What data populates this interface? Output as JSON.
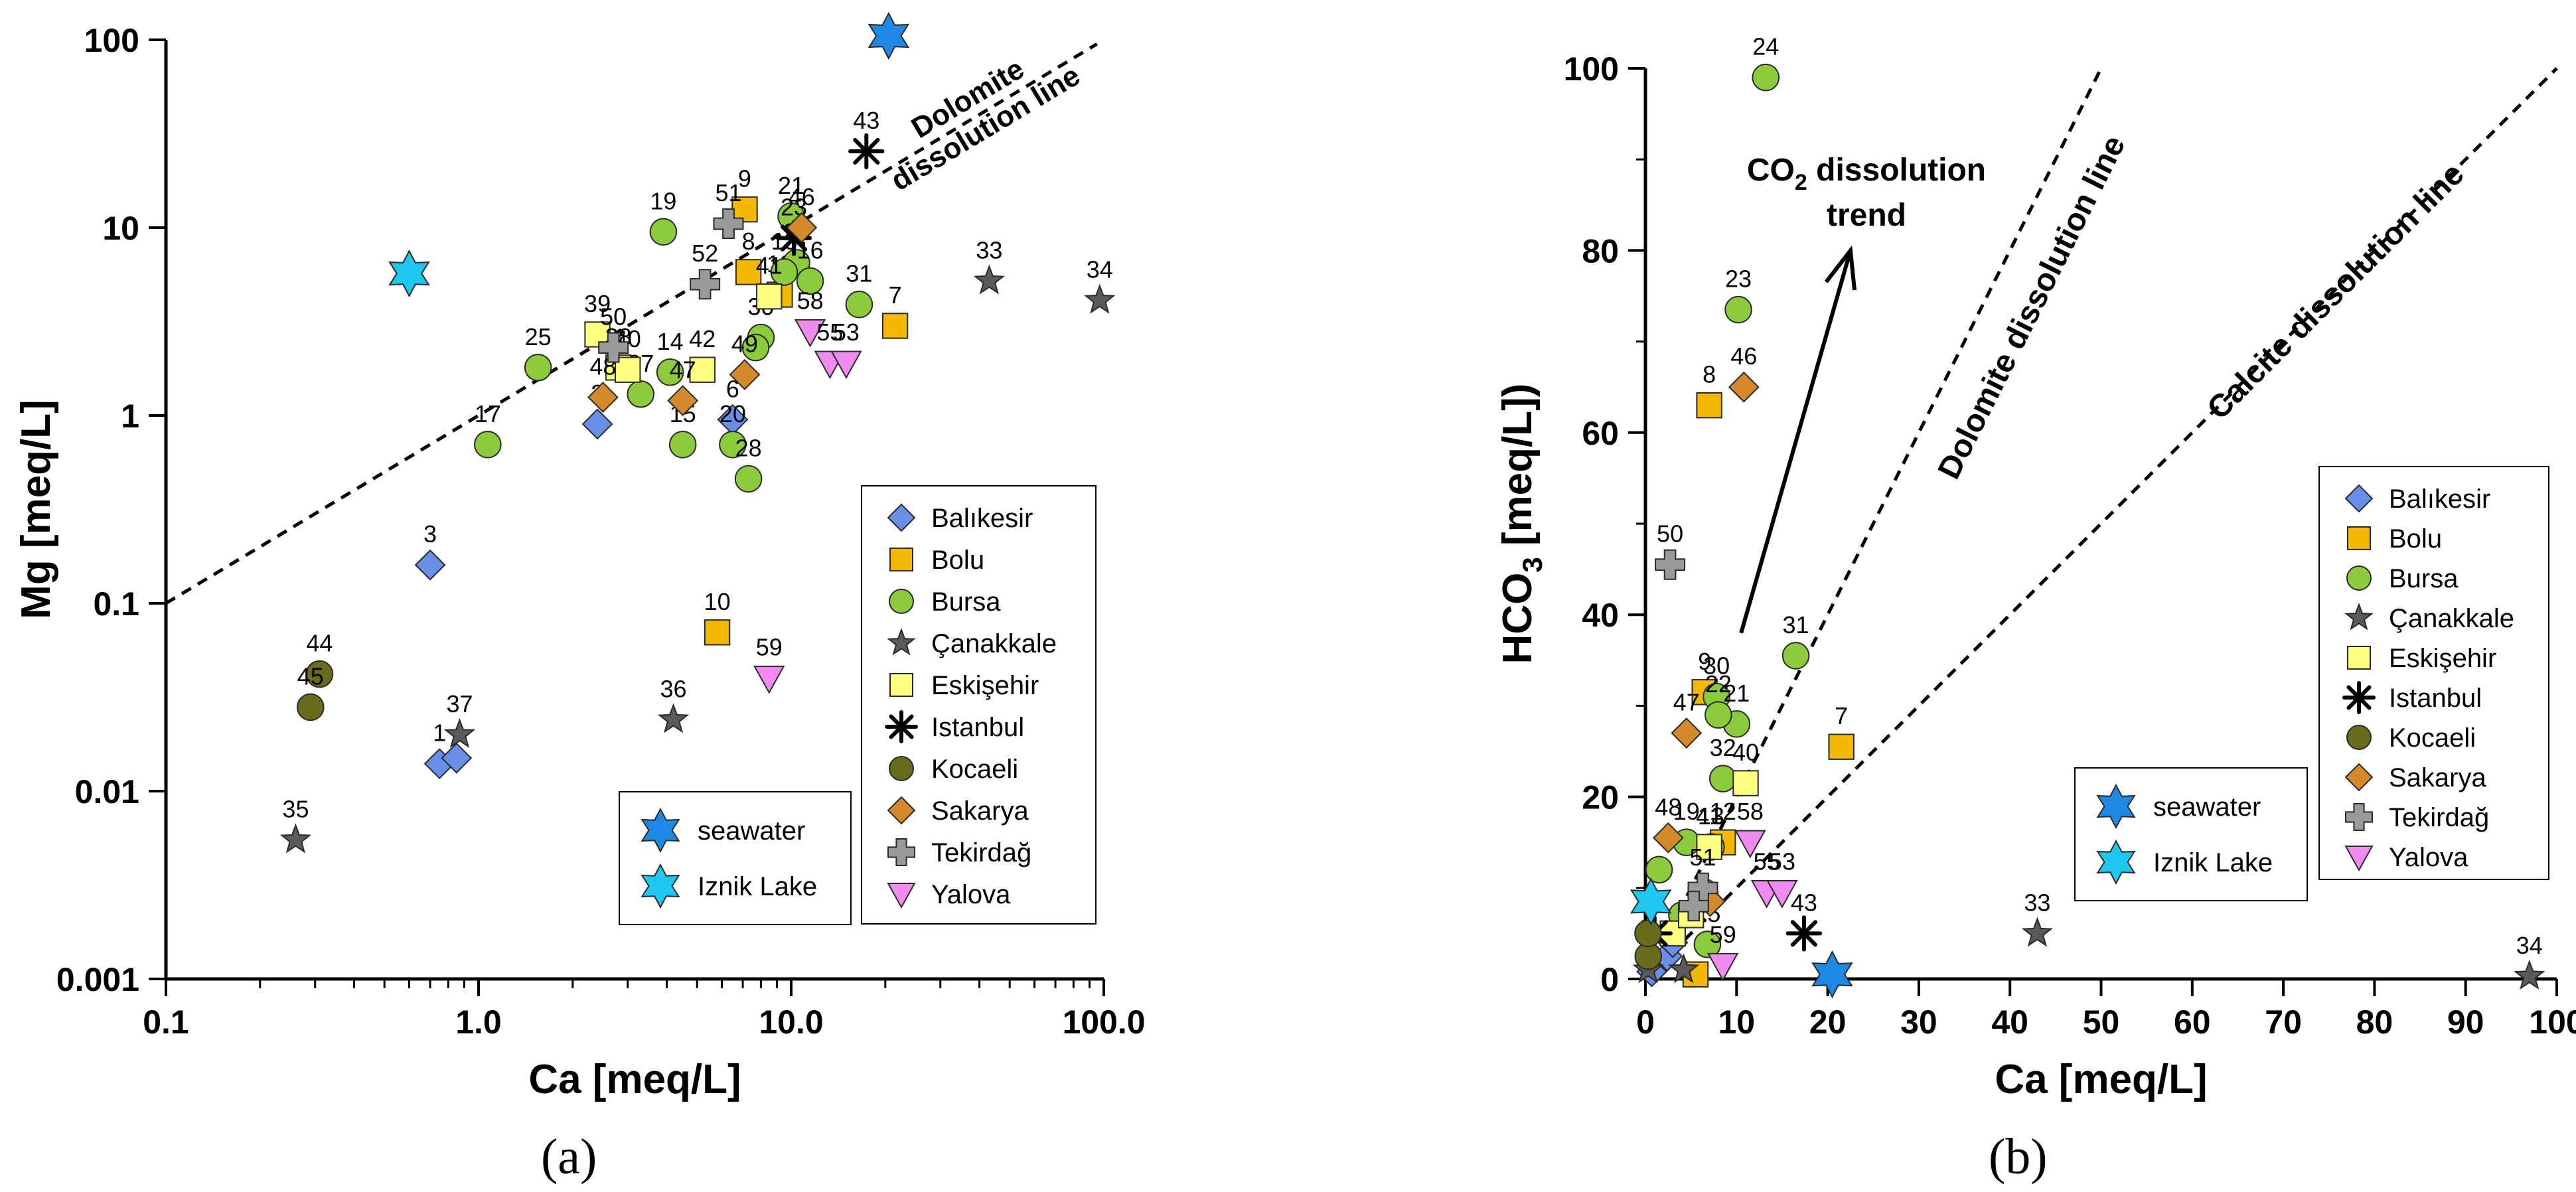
{
  "figure": {
    "panel_a_label": "(a)",
    "panel_b_label": "(b)"
  },
  "chart_data": [
    {
      "type": "scatter",
      "panel": "(a)",
      "xlabel": "Ca [meq/L]",
      "ylabel": "Mg [meq/L]",
      "xscale": "log",
      "yscale": "log",
      "xlim": [
        0.1,
        100
      ],
      "ylim": [
        0.001,
        100
      ],
      "xticks": [
        0.1,
        1,
        10,
        100
      ],
      "xtick_labels": [
        "0.1",
        "1.0",
        "10.0",
        "100.0"
      ],
      "yticks": [
        0.001,
        0.01,
        0.1,
        1,
        10,
        100
      ],
      "ytick_labels": [
        "0.001",
        "0.01",
        "0.1",
        "1",
        "10",
        "100"
      ],
      "grid": false,
      "legend_position": "bottom-right",
      "reference_lines": [
        {
          "name": "Dolomite dissolution line",
          "label_lines": [
            "Dolomite",
            "dissolution line"
          ],
          "from": [
            0.1,
            0.1
          ],
          "to": [
            95,
            95
          ],
          "style": "dashed"
        }
      ],
      "series": [
        {
          "name": "Balıkesir",
          "marker": "diamond",
          "color": "#6A8FE8",
          "points": [
            {
              "x": 0.7,
              "y": 0.16,
              "label": "3"
            },
            {
              "x": 2.4,
              "y": 0.9,
              "label": "2"
            },
            {
              "x": 0.75,
              "y": 0.014,
              "label": "1"
            },
            {
              "x": 0.85,
              "y": 0.015,
              "label": ""
            },
            {
              "x": 6.5,
              "y": 0.95,
              "label": "6"
            }
          ]
        },
        {
          "name": "Bolu",
          "marker": "square",
          "color": "#F5B800",
          "points": [
            {
              "x": 7.1,
              "y": 12.5,
              "label": "9"
            },
            {
              "x": 7.3,
              "y": 5.8,
              "label": "8"
            },
            {
              "x": 21.5,
              "y": 3.0,
              "label": "7"
            },
            {
              "x": 5.8,
              "y": 0.07,
              "label": "10"
            },
            {
              "x": 9.2,
              "y": 4.4,
              "label": "12"
            }
          ]
        },
        {
          "name": "Bursa",
          "marker": "circle",
          "color": "#8CCB3C",
          "points": [
            {
              "x": 3.9,
              "y": 9.5,
              "label": "19"
            },
            {
              "x": 10,
              "y": 11.5,
              "label": "21"
            },
            {
              "x": 10.4,
              "y": 6.5,
              "label": "24"
            },
            {
              "x": 1.55,
              "y": 1.8,
              "label": "25"
            },
            {
              "x": 1.07,
              "y": 0.7,
              "label": "17"
            },
            {
              "x": 4.5,
              "y": 0.7,
              "label": "15"
            },
            {
              "x": 6.5,
              "y": 0.7,
              "label": "20"
            },
            {
              "x": 7.3,
              "y": 0.46,
              "label": "28"
            },
            {
              "x": 16.5,
              "y": 3.9,
              "label": "31"
            },
            {
              "x": 8.0,
              "y": 2.6,
              "label": "30"
            },
            {
              "x": 3.3,
              "y": 1.3,
              "label": "27"
            },
            {
              "x": 4.1,
              "y": 1.7,
              "label": "14"
            },
            {
              "x": 7.7,
              "y": 2.3,
              "label": ""
            },
            {
              "x": 11.5,
              "y": 5.2,
              "label": "16"
            },
            {
              "x": 9.5,
              "y": 5.8,
              "label": "13"
            }
          ]
        },
        {
          "name": "Çanakkale",
          "marker": "star",
          "color": "#5A5A5A",
          "points": [
            {
              "x": 43,
              "y": 5.2,
              "label": "33"
            },
            {
              "x": 97,
              "y": 4.1,
              "label": "34"
            },
            {
              "x": 0.26,
              "y": 0.0055,
              "label": "35"
            },
            {
              "x": 4.2,
              "y": 0.024,
              "label": "36"
            },
            {
              "x": 0.87,
              "y": 0.02,
              "label": "37"
            }
          ]
        },
        {
          "name": "Eskişehir",
          "marker": "square",
          "color": "#FFFF80",
          "points": [
            {
              "x": 2.4,
              "y": 2.7,
              "label": "39"
            },
            {
              "x": 2.8,
              "y": 1.8,
              "label": "38"
            },
            {
              "x": 3.0,
              "y": 1.75,
              "label": "40"
            },
            {
              "x": 5.2,
              "y": 1.75,
              "label": "42"
            },
            {
              "x": 8.5,
              "y": 4.3,
              "label": "41"
            }
          ]
        },
        {
          "name": "Istanbul",
          "marker": "asterisk",
          "color": "#000000",
          "points": [
            {
              "x": 17.4,
              "y": 25.5,
              "label": "43"
            },
            {
              "x": 10.2,
              "y": 8.8,
              "label": "23"
            }
          ]
        },
        {
          "name": "Kocaeli",
          "marker": "circle",
          "color": "#6B6B1E",
          "points": [
            {
              "x": 0.31,
              "y": 0.042,
              "label": "44"
            },
            {
              "x": 0.29,
              "y": 0.028,
              "label": "45"
            }
          ]
        },
        {
          "name": "Sakarya",
          "marker": "diamond",
          "color": "#D4892B",
          "points": [
            {
              "x": 2.5,
              "y": 1.25,
              "label": "48"
            },
            {
              "x": 4.5,
              "y": 1.2,
              "label": "47"
            },
            {
              "x": 7.1,
              "y": 1.65,
              "label": "49"
            },
            {
              "x": 10.8,
              "y": 10.0,
              "label": "46"
            }
          ]
        },
        {
          "name": "Tekirdağ",
          "marker": "cross",
          "color": "#9A9A9A",
          "points": [
            {
              "x": 6.3,
              "y": 10.5,
              "label": "51"
            },
            {
              "x": 5.3,
              "y": 5.0,
              "label": "52"
            },
            {
              "x": 2.7,
              "y": 2.3,
              "label": "50"
            }
          ]
        },
        {
          "name": "Yalova",
          "marker": "triangle-down",
          "color": "#F08CF0",
          "points": [
            {
              "x": 11.5,
              "y": 2.8,
              "label": "58"
            },
            {
              "x": 13.3,
              "y": 1.9,
              "label": "55"
            },
            {
              "x": 15.0,
              "y": 1.9,
              "label": "53"
            },
            {
              "x": 8.5,
              "y": 0.04,
              "label": "59"
            }
          ]
        },
        {
          "name": "seawater",
          "marker": "star6",
          "color": "#1E88E5",
          "points": [
            {
              "x": 20.5,
              "y": 105,
              "label": ""
            }
          ]
        },
        {
          "name": "Iznik Lake",
          "marker": "star6",
          "color": "#1EC8F0",
          "points": [
            {
              "x": 0.6,
              "y": 5.7,
              "label": ""
            }
          ]
        }
      ]
    },
    {
      "type": "scatter",
      "panel": "(b)",
      "xlabel": "Ca [meq/L]",
      "ylabel": "HCO3 [meq/L]",
      "ylabel_parts": [
        "HCO",
        "3",
        " [meq/L])"
      ],
      "xscale": "linear",
      "yscale": "linear",
      "xlim": [
        0,
        100
      ],
      "ylim": [
        0,
        100
      ],
      "xticks": [
        0,
        10,
        20,
        30,
        40,
        50,
        60,
        70,
        80,
        90,
        100
      ],
      "yticks": [
        0,
        20,
        40,
        60,
        80,
        100
      ],
      "grid": false,
      "legend_position": "right",
      "annotations": [
        {
          "text_parts": [
            "CO",
            "2",
            " dissolution"
          ],
          "line2": "trend",
          "arrow_from": [
            10.5,
            38
          ],
          "arrow_to": [
            22.5,
            80
          ]
        }
      ],
      "reference_lines": [
        {
          "name": "Dolomite dissolution line",
          "from": [
            0,
            0
          ],
          "to": [
            50,
            100
          ],
          "style": "dashed"
        },
        {
          "name": "Calcite dissolution line",
          "from": [
            0,
            0
          ],
          "to": [
            100,
            100
          ],
          "style": "dashed"
        }
      ],
      "series": [
        {
          "name": "Balıkesir",
          "marker": "diamond",
          "color": "#6A8FE8",
          "points": [
            {
              "x": 0.7,
              "y": 0.8,
              "label": ""
            },
            {
              "x": 2.4,
              "y": 2.5,
              "label": ""
            },
            {
              "x": 3.0,
              "y": 4.0,
              "label": ""
            }
          ]
        },
        {
          "name": "Bolu",
          "marker": "square",
          "color": "#F5B800",
          "points": [
            {
              "x": 7.0,
              "y": 63,
              "label": "8"
            },
            {
              "x": 6.5,
              "y": 31.5,
              "label": "9"
            },
            {
              "x": 21.5,
              "y": 25.5,
              "label": "7"
            },
            {
              "x": 8.5,
              "y": 15.0,
              "label": "12"
            },
            {
              "x": 5.5,
              "y": 0.5,
              "label": ""
            }
          ]
        },
        {
          "name": "Bursa",
          "marker": "circle",
          "color": "#8CCB3C",
          "points": [
            {
              "x": 13.2,
              "y": 99,
              "label": "24"
            },
            {
              "x": 10.2,
              "y": 73.5,
              "label": "23"
            },
            {
              "x": 16.5,
              "y": 35.5,
              "label": "31"
            },
            {
              "x": 7.8,
              "y": 31.0,
              "label": "30"
            },
            {
              "x": 10.0,
              "y": 28.0,
              "label": "21"
            },
            {
              "x": 8.0,
              "y": 29.0,
              "label": "22"
            },
            {
              "x": 8.5,
              "y": 22.0,
              "label": "32"
            },
            {
              "x": 4.5,
              "y": 15.0,
              "label": "19"
            },
            {
              "x": 1.5,
              "y": 12.0,
              "label": ""
            },
            {
              "x": 7.2,
              "y": 14.5,
              "label": "13"
            },
            {
              "x": 6.5,
              "y": 9.5,
              "label": ""
            },
            {
              "x": 4.0,
              "y": 7.0,
              "label": ""
            },
            {
              "x": 6.8,
              "y": 3.8,
              "label": "25"
            }
          ]
        },
        {
          "name": "Çanakkale",
          "marker": "star",
          "color": "#5A5A5A",
          "points": [
            {
              "x": 43,
              "y": 5.0,
              "label": "33"
            },
            {
              "x": 97,
              "y": 0.3,
              "label": "34"
            },
            {
              "x": 0.3,
              "y": 1.0,
              "label": ""
            },
            {
              "x": 4.2,
              "y": 1.0,
              "label": ""
            }
          ]
        },
        {
          "name": "Eskişehir",
          "marker": "square",
          "color": "#FFFF80",
          "points": [
            {
              "x": 11.0,
              "y": 21.5,
              "label": "40"
            },
            {
              "x": 7.0,
              "y": 14.5,
              "label": "41"
            },
            {
              "x": 3.0,
              "y": 5.0,
              "label": ""
            },
            {
              "x": 5.0,
              "y": 7.0,
              "label": ""
            }
          ]
        },
        {
          "name": "Istanbul",
          "marker": "asterisk",
          "color": "#000000",
          "points": [
            {
              "x": 17.4,
              "y": 5.0,
              "label": "43"
            },
            {
              "x": 1.0,
              "y": 5.0,
              "label": ""
            }
          ]
        },
        {
          "name": "Kocaeli",
          "marker": "circle",
          "color": "#6B6B1E",
          "points": [
            {
              "x": 0.31,
              "y": 2.5,
              "label": ""
            },
            {
              "x": 0.29,
              "y": 5.0,
              "label": ""
            }
          ]
        },
        {
          "name": "Sakarya",
          "marker": "diamond",
          "color": "#D4892B",
          "points": [
            {
              "x": 10.8,
              "y": 65,
              "label": "46"
            },
            {
              "x": 4.5,
              "y": 27.0,
              "label": "47"
            },
            {
              "x": 2.5,
              "y": 15.5,
              "label": "48"
            },
            {
              "x": 7.1,
              "y": 8.5,
              "label": ""
            }
          ]
        },
        {
          "name": "Tekirdağ",
          "marker": "cross",
          "color": "#9A9A9A",
          "points": [
            {
              "x": 2.7,
              "y": 45.5,
              "label": "50"
            },
            {
              "x": 6.3,
              "y": 10.0,
              "label": "51"
            },
            {
              "x": 5.3,
              "y": 8.0,
              "label": ""
            }
          ]
        },
        {
          "name": "Yalova",
          "marker": "triangle-down",
          "color": "#F08CF0",
          "points": [
            {
              "x": 11.5,
              "y": 15.0,
              "label": "58"
            },
            {
              "x": 13.3,
              "y": 9.5,
              "label": "55"
            },
            {
              "x": 15.0,
              "y": 9.5,
              "label": "53"
            },
            {
              "x": 8.5,
              "y": 1.5,
              "label": "59"
            }
          ]
        },
        {
          "name": "seawater",
          "marker": "star6",
          "color": "#1E88E5",
          "points": [
            {
              "x": 20.5,
              "y": 0.5,
              "label": ""
            }
          ]
        },
        {
          "name": "Iznik Lake",
          "marker": "star6",
          "color": "#1EC8F0",
          "points": [
            {
              "x": 0.6,
              "y": 8.5,
              "label": ""
            }
          ]
        }
      ]
    }
  ]
}
